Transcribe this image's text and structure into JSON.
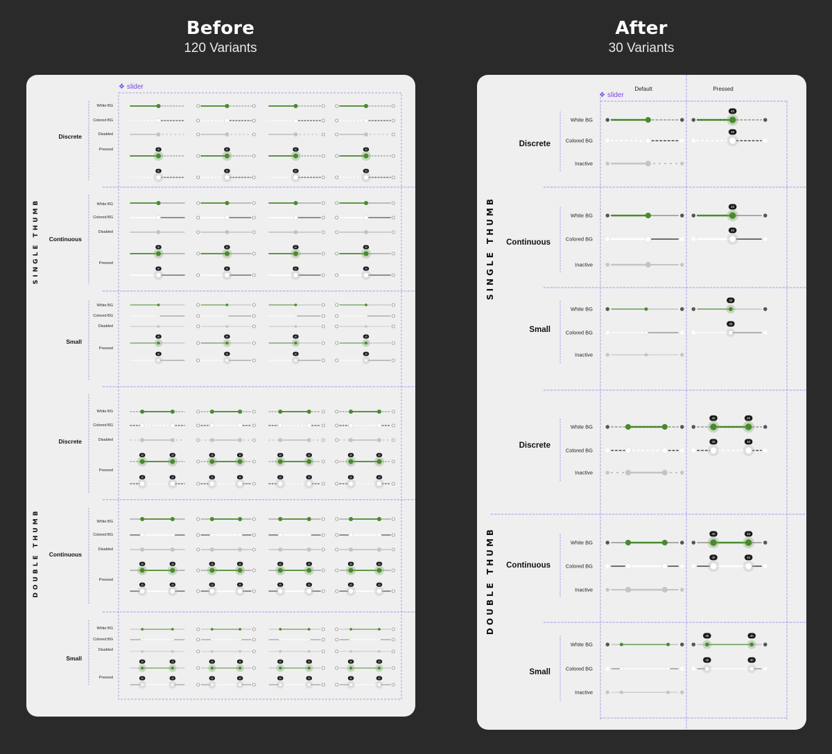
{
  "headings": {
    "before": {
      "title": "Before",
      "subtitle": "120 Variants"
    },
    "after": {
      "title": "After",
      "subtitle": "30 Variants"
    }
  },
  "component_label": "slider",
  "component_icon": "component-diamond-icon",
  "before": {
    "groups": [
      {
        "name": "SINGLE THUMB",
        "types": [
          {
            "name": "Discrete",
            "states": [
              "White BG",
              "Colored BG",
              "Disabled",
              "Pressed"
            ]
          },
          {
            "name": "Continuous",
            "states": [
              "White BG",
              "Colored BG",
              "Disabled",
              "Pressed"
            ]
          },
          {
            "name": "Small",
            "states": [
              "White BG",
              "Colored BG",
              "Disabled",
              "Pressed"
            ]
          }
        ]
      },
      {
        "name": "DOUBLE THUMB",
        "types": [
          {
            "name": "Discrete",
            "states": [
              "White BG",
              "Colored BG",
              "Disabled",
              "Pressed"
            ]
          },
          {
            "name": "Continuous",
            "states": [
              "White BG",
              "Colored BG",
              "Disabled",
              "Pressed"
            ]
          },
          {
            "name": "Small",
            "states": [
              "White BG",
              "Colored BG",
              "Disabled",
              "Pressed"
            ]
          }
        ]
      }
    ]
  },
  "after": {
    "columns": [
      "Default",
      "Pressed"
    ],
    "groups": [
      {
        "name": "SINGLE THUMB",
        "types": [
          {
            "name": "Discrete",
            "states": [
              "White BG",
              "Colored BG",
              "Inactive"
            ]
          },
          {
            "name": "Continuous",
            "states": [
              "White BG",
              "Colored BG",
              "Inactive"
            ]
          },
          {
            "name": "Small",
            "states": [
              "White BG",
              "Colored BG",
              "Inactive"
            ]
          }
        ]
      },
      {
        "name": "DOUBLE THUMB",
        "types": [
          {
            "name": "Discrete",
            "states": [
              "White BG",
              "Colored BG",
              "Inactive"
            ]
          },
          {
            "name": "Continuous",
            "states": [
              "White BG",
              "Colored BG",
              "Inactive"
            ]
          },
          {
            "name": "Small",
            "states": [
              "White BG",
              "Colored BG",
              "Inactive"
            ]
          }
        ]
      }
    ]
  },
  "tooltip_value": "40",
  "colors": {
    "background": "#2a2a2a",
    "panel": "#efefef",
    "active_track": "#4a8a2e",
    "inactive_track": "#a8a8a8",
    "disabled": "#c4c4c4",
    "tooltip": "#1a1a1a",
    "guide": "#8f7cf0",
    "component_label": "#7b47e0"
  }
}
